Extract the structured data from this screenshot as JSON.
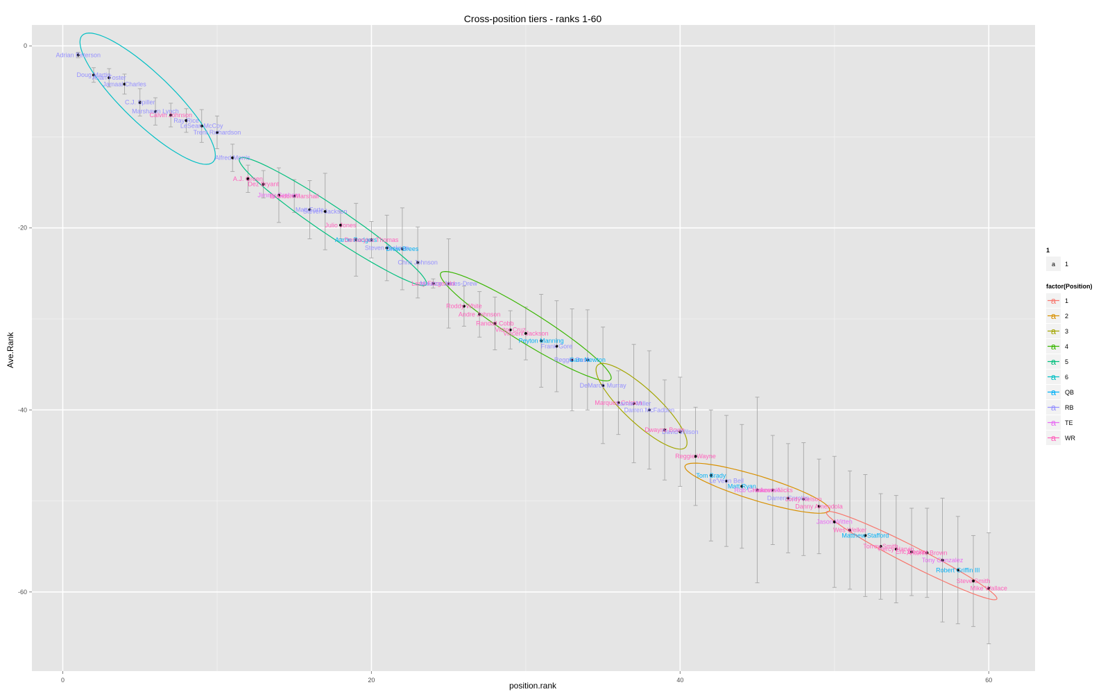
{
  "chart_data": {
    "type": "scatter",
    "title": "Cross-position tiers - ranks 1-60",
    "xlabel": "position.rank",
    "ylabel": "Ave.Rank",
    "xlim": [
      -2,
      63
    ],
    "ylim": [
      -68.7,
      2.3
    ],
    "x_ticks": [
      0,
      20,
      40,
      60
    ],
    "y_ticks": [
      0,
      -20,
      -40,
      -60
    ],
    "grid": true,
    "legend_position": "right",
    "legend": {
      "group1_title": "1",
      "group1_items": [
        {
          "key": "a",
          "label": "1"
        }
      ],
      "group2_title": "factor(Position)",
      "group2_items": [
        {
          "key": "a",
          "label": "1",
          "color": "#F8766D"
        },
        {
          "key": "a",
          "label": "2",
          "color": "#D89000"
        },
        {
          "key": "a",
          "label": "3",
          "color": "#A3A500"
        },
        {
          "key": "a",
          "label": "4",
          "color": "#39B600"
        },
        {
          "key": "a",
          "label": "5",
          "color": "#00BF7D"
        },
        {
          "key": "a",
          "label": "6",
          "color": "#00BFC4"
        },
        {
          "key": "a",
          "label": "QB",
          "color": "#00B0F6"
        },
        {
          "key": "a",
          "label": "RB",
          "color": "#9590FF"
        },
        {
          "key": "a",
          "label": "TE",
          "color": "#E76BF3"
        },
        {
          "key": "a",
          "label": "WR",
          "color": "#FF62BC"
        }
      ]
    },
    "position_colors": {
      "QB": "#00B0F6",
      "RB": "#9590FF",
      "TE": "#E76BF3",
      "WR": "#FF62BC",
      "1": "#F8766D",
      "2": "#D89000",
      "3": "#A3A500",
      "4": "#39B600",
      "5": "#00BF7D",
      "6": "#00BFC4"
    },
    "points": [
      {
        "x": 1,
        "y": -1.0,
        "err": 0.3,
        "name": "Adrian Peterson",
        "pos": "RB"
      },
      {
        "x": 2,
        "y": -3.2,
        "err": 0.8,
        "name": "Doug Martin",
        "pos": "RB"
      },
      {
        "x": 3,
        "y": -3.5,
        "err": 1.0,
        "name": "Arian Foster",
        "pos": "RB"
      },
      {
        "x": 4,
        "y": -4.2,
        "err": 1.1,
        "name": "Jamaal Charles",
        "pos": "RB"
      },
      {
        "x": 5,
        "y": -6.2,
        "err": 1.5,
        "name": "C.J. Spiller",
        "pos": "RB"
      },
      {
        "x": 6,
        "y": -7.2,
        "err": 1.5,
        "name": "Marshawn Lynch",
        "pos": "RB"
      },
      {
        "x": 7,
        "y": -7.6,
        "err": 1.3,
        "name": "Calvin Johnson",
        "pos": "WR"
      },
      {
        "x": 8,
        "y": -8.2,
        "err": 1.3,
        "name": "Ray Rice",
        "pos": "RB"
      },
      {
        "x": 9,
        "y": -8.8,
        "err": 1.8,
        "name": "LeSean McCoy",
        "pos": "RB"
      },
      {
        "x": 10,
        "y": -9.5,
        "err": 1.8,
        "name": "Trent Richardson",
        "pos": "RB"
      },
      {
        "x": 11,
        "y": -12.3,
        "err": 1.5,
        "name": "Alfred Morris",
        "pos": "RB"
      },
      {
        "x": 12,
        "y": -14.6,
        "err": 1.5,
        "name": "A.J. Green",
        "pos": "WR"
      },
      {
        "x": 13,
        "y": -15.2,
        "err": 1.5,
        "name": "Dez Bryant",
        "pos": "WR"
      },
      {
        "x": 14,
        "y": -16.4,
        "err": 3.0,
        "name": "Jimmy Graham",
        "pos": "TE"
      },
      {
        "x": 15,
        "y": -16.5,
        "err": 1.8,
        "name": "Brandon Marshall",
        "pos": "WR"
      },
      {
        "x": 16,
        "y": -18.0,
        "err": 3.2,
        "name": "Matt Forte",
        "pos": "RB"
      },
      {
        "x": 17,
        "y": -18.2,
        "err": 4.2,
        "name": "Steven Jackson",
        "pos": "RB"
      },
      {
        "x": 18,
        "y": -19.7,
        "err": 1.5,
        "name": "Julio Jones",
        "pos": "WR"
      },
      {
        "x": 19,
        "y": -21.3,
        "err": 4.0,
        "name": "Aaron Rodgers",
        "pos": "QB"
      },
      {
        "x": 20,
        "y": -21.3,
        "err": 2.0,
        "name": "Demaryius Thomas",
        "pos": "WR"
      },
      {
        "x": 21,
        "y": -22.2,
        "err": 3.6,
        "name": "Steven Jackson",
        "pos": "RB"
      },
      {
        "x": 22,
        "y": -22.3,
        "err": 4.5,
        "name": "Drew Brees",
        "pos": "QB"
      },
      {
        "x": 23,
        "y": -23.8,
        "err": 3.9,
        "name": "Chris Johnson",
        "pos": "RB"
      },
      {
        "x": 24,
        "y": -26.1,
        "err": 0.5,
        "name": "Larry Fitzgerald",
        "pos": "WR"
      },
      {
        "x": 25,
        "y": -26.1,
        "err": 4.9,
        "name": "Maurice Jones-Drew",
        "pos": "RB"
      },
      {
        "x": 26,
        "y": -28.6,
        "err": 2.2,
        "name": "Roddy White",
        "pos": "WR"
      },
      {
        "x": 27,
        "y": -29.5,
        "err": 2.5,
        "name": "Andre Johnson",
        "pos": "WR"
      },
      {
        "x": 28,
        "y": -30.5,
        "err": 2.9,
        "name": "Randall Cobb",
        "pos": "WR"
      },
      {
        "x": 29,
        "y": -31.2,
        "err": 2.1,
        "name": "Victor Cruz",
        "pos": "WR"
      },
      {
        "x": 30,
        "y": -31.6,
        "err": 2.9,
        "name": "Vincent Jackson",
        "pos": "WR"
      },
      {
        "x": 31,
        "y": -32.4,
        "err": 5.1,
        "name": "Peyton Manning",
        "pos": "QB"
      },
      {
        "x": 32,
        "y": -33.0,
        "err": 5.0,
        "name": "Frank Gore",
        "pos": "RB"
      },
      {
        "x": 33,
        "y": -34.5,
        "err": 5.6,
        "name": "Reggie Bush",
        "pos": "RB"
      },
      {
        "x": 34,
        "y": -34.5,
        "err": 5.5,
        "name": "Cam Newton",
        "pos": "QB"
      },
      {
        "x": 35,
        "y": -37.3,
        "err": 6.4,
        "name": "DeMarco Murray",
        "pos": "RB"
      },
      {
        "x": 36,
        "y": -39.2,
        "err": 3.5,
        "name": "Marques Colston",
        "pos": "WR"
      },
      {
        "x": 37,
        "y": -39.3,
        "err": 6.5,
        "name": "Lamar Miller",
        "pos": "RB"
      },
      {
        "x": 38,
        "y": -40.0,
        "err": 6.5,
        "name": "Darren McFadden",
        "pos": "RB"
      },
      {
        "x": 39,
        "y": -42.2,
        "err": 5.5,
        "name": "Dwayne Bowe",
        "pos": "WR"
      },
      {
        "x": 40,
        "y": -42.4,
        "err": 6.0,
        "name": "David Wilson",
        "pos": "RB"
      },
      {
        "x": 41,
        "y": -45.1,
        "err": 5.4,
        "name": "Reggie Wayne",
        "pos": "WR"
      },
      {
        "x": 42,
        "y": -47.2,
        "err": 7.2,
        "name": "Tom Brady",
        "pos": "QB"
      },
      {
        "x": 43,
        "y": -47.8,
        "err": 7.2,
        "name": "Le'Veon Bell",
        "pos": "RB"
      },
      {
        "x": 44,
        "y": -48.4,
        "err": 6.8,
        "name": "Matt Ryan",
        "pos": "QB"
      },
      {
        "x": 45,
        "y": -48.8,
        "err": 10.2,
        "name": "Rob Gronkowski",
        "pos": "TE"
      },
      {
        "x": 46,
        "y": -48.8,
        "err": 6.0,
        "name": "Hakeem Nicks",
        "pos": "WR"
      },
      {
        "x": 47,
        "y": -49.7,
        "err": 6.0,
        "name": "Darren Sproles",
        "pos": "RB"
      },
      {
        "x": 48,
        "y": -49.8,
        "err": 6.2,
        "name": "Jordy Nelson",
        "pos": "WR"
      },
      {
        "x": 49,
        "y": -50.6,
        "err": 5.2,
        "name": "Danny Amendola",
        "pos": "WR"
      },
      {
        "x": 50,
        "y": -52.3,
        "err": 7.2,
        "name": "Jason Witten",
        "pos": "TE"
      },
      {
        "x": 51,
        "y": -53.2,
        "err": 6.5,
        "name": "Wes Welker",
        "pos": "WR"
      },
      {
        "x": 52,
        "y": -53.8,
        "err": 6.7,
        "name": "Matthew Stafford",
        "pos": "QB"
      },
      {
        "x": 53,
        "y": -55.0,
        "err": 5.8,
        "name": "Torrey Smith",
        "pos": "WR"
      },
      {
        "x": 54,
        "y": -55.3,
        "err": 5.9,
        "name": "Percy Harvin",
        "pos": "WR"
      },
      {
        "x": 55,
        "y": -55.6,
        "err": 4.8,
        "name": "Eric Decker",
        "pos": "WR"
      },
      {
        "x": 56,
        "y": -55.7,
        "err": 4.9,
        "name": "Antonio Brown",
        "pos": "WR"
      },
      {
        "x": 57,
        "y": -56.5,
        "err": 6.8,
        "name": "Tony Gonzalez",
        "pos": "TE"
      },
      {
        "x": 58,
        "y": -57.6,
        "err": 5.9,
        "name": "Robert Griffin III",
        "pos": "QB"
      },
      {
        "x": 59,
        "y": -58.8,
        "err": 5.0,
        "name": "Steve Smith",
        "pos": "WR"
      },
      {
        "x": 60,
        "y": -59.6,
        "err": 6.1,
        "name": "Mike Wallace",
        "pos": "WR"
      }
    ],
    "tiers": [
      {
        "tier": "6",
        "cx": 5.5,
        "cy": -5.8,
        "rx": 5.9,
        "ry": 1.6,
        "angle": -44
      },
      {
        "tier": "5",
        "cx": 17.5,
        "cy": -19.3,
        "rx": 7.3,
        "ry": 0.9,
        "angle": -34
      },
      {
        "tier": "4",
        "cx": 30.0,
        "cy": -30.8,
        "rx": 6.5,
        "ry": 1.0,
        "angle": -32
      },
      {
        "tier": "3",
        "cx": 37.5,
        "cy": -39.6,
        "rx": 3.9,
        "ry": 1.1,
        "angle": -43
      },
      {
        "tier": "2",
        "cx": 45.0,
        "cy": -48.6,
        "rx": 4.9,
        "ry": 0.8,
        "angle": -17
      },
      {
        "tier": "1",
        "cx": 55.0,
        "cy": -56.0,
        "rx": 6.2,
        "ry": 0.6,
        "angle": -27
      }
    ]
  }
}
